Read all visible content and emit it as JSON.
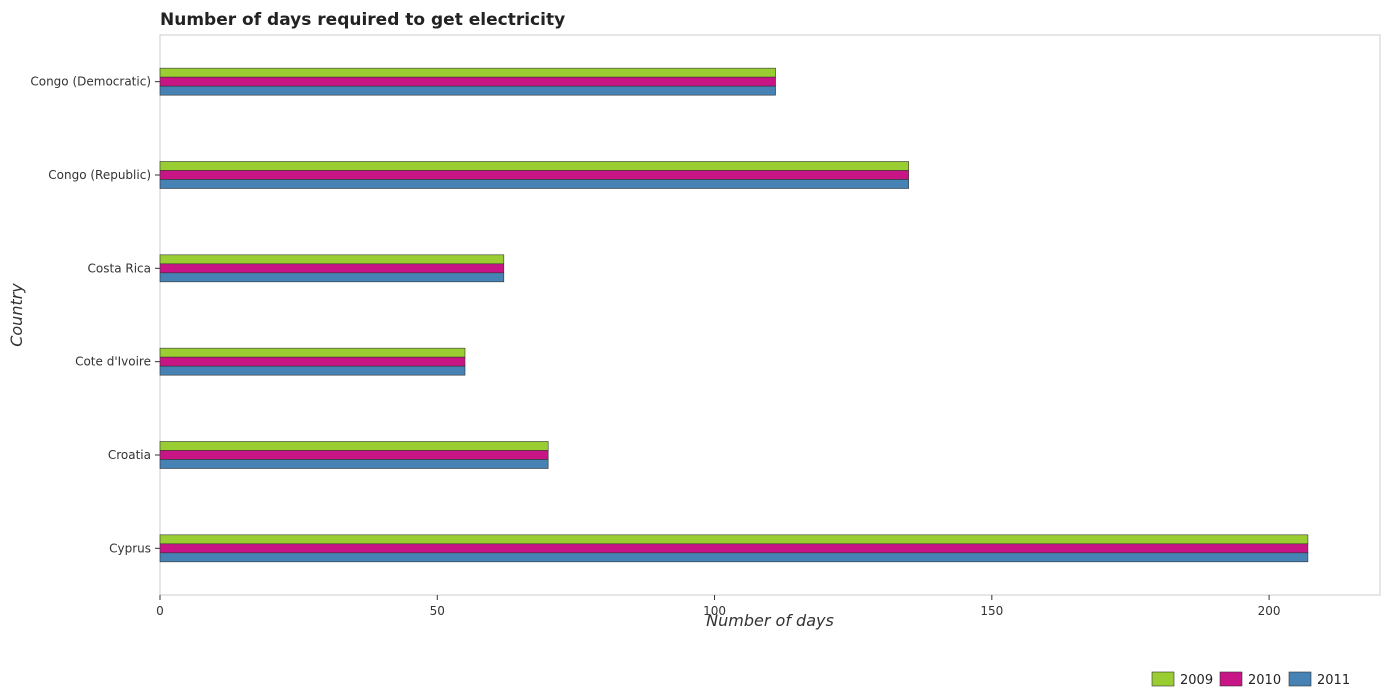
{
  "chart_data": {
    "type": "bar",
    "orientation": "horizontal",
    "title": "Number of days required to get electricity",
    "xlabel": "Number of days",
    "ylabel": "Country",
    "categories": [
      "Congo (Democratic)",
      "Congo (Republic)",
      "Costa Rica",
      "Cote d'Ivoire",
      "Croatia",
      "Cyprus"
    ],
    "series": [
      {
        "name": "2009",
        "color": "#9ACD32",
        "values": [
          111,
          135,
          62,
          55,
          70,
          207
        ]
      },
      {
        "name": "2010",
        "color": "#C71585",
        "values": [
          111,
          135,
          62,
          55,
          70,
          207
        ]
      },
      {
        "name": "2011",
        "color": "#4682B4",
        "values": [
          111,
          135,
          62,
          55,
          70,
          207
        ]
      }
    ],
    "xlim": [
      0,
      220
    ],
    "xticks": [
      0,
      50,
      100,
      150,
      200
    ],
    "grid": false,
    "legend_position": "bottom-right"
  }
}
